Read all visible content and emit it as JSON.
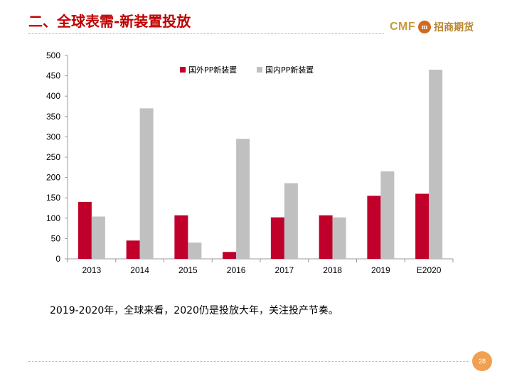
{
  "slide": {
    "title": "二、全球表需-新装置投放",
    "caption": "2019-2020年，全球来看，2020仍是投放大年，关注投产节奏。",
    "page_number": "28"
  },
  "logo": {
    "brand": "CMF",
    "emblem": "m",
    "name": "招商期货"
  },
  "colors": {
    "title": "#c00000",
    "series_overseas": "#c0002a",
    "series_domestic": "#c0c0c0"
  },
  "chart_data": {
    "type": "bar",
    "categories": [
      "2013",
      "2014",
      "2015",
      "2016",
      "2017",
      "2018",
      "2019",
      "E2020"
    ],
    "series": [
      {
        "name": "国外PP新装置",
        "values": [
          140,
          45,
          107,
          17,
          102,
          107,
          155,
          160
        ]
      },
      {
        "name": "国内PP新装置",
        "values": [
          104,
          370,
          40,
          295,
          186,
          102,
          215,
          465
        ]
      }
    ],
    "ylim": [
      0,
      500
    ],
    "yticks": [
      0,
      50,
      100,
      150,
      200,
      250,
      300,
      350,
      400,
      450,
      500
    ],
    "grid": false,
    "legend": "top-left"
  }
}
